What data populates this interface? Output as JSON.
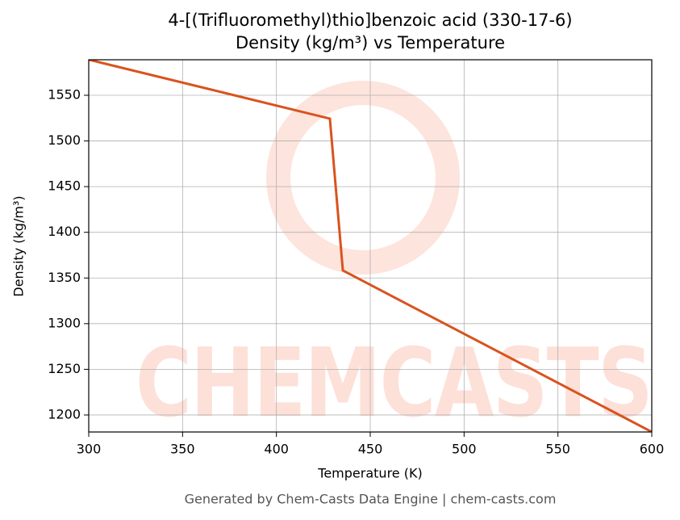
{
  "chart_data": {
    "type": "line",
    "title": "4-[(Trifluoromethyl)thio]benzoic acid (330-17-6)",
    "subtitle": "Density (kg/m³) vs Temperature",
    "x_label": "Temperature (K)",
    "y_label": "Density (kg/m³)",
    "watermark": "CHEMCASTS",
    "footer": "Generated by Chem-Casts Data Engine | chem-casts.com",
    "x": [
      300,
      428.5,
      435.4,
      600
    ],
    "series": [
      {
        "name": "Density",
        "color": "#d9531e",
        "values": [
          1589,
          1524.4,
          1358.2,
          1181.5
        ]
      }
    ],
    "xlim": [
      300,
      600
    ],
    "xticks": [
      300,
      350,
      400,
      450,
      500,
      550,
      600
    ],
    "ylim": [
      1181.4,
      1588.9
    ],
    "yticks": [
      1200,
      1250,
      1300,
      1350,
      1400,
      1450,
      1500,
      1550
    ],
    "grid": true
  }
}
